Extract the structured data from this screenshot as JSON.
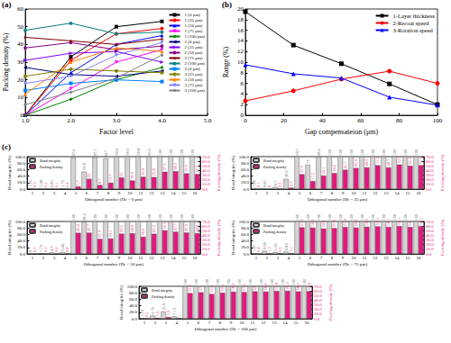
{
  "chart_data": [
    {
      "type": "line",
      "title": "(a)",
      "x_label": "Factor level",
      "y_label": "Packing density (%)",
      "x": [
        1,
        2,
        3,
        4
      ],
      "xlim": [
        1,
        5
      ],
      "xticks": [
        {
          "value": 1,
          "label": "1.0"
        },
        {
          "value": 2,
          "label": "2.0"
        },
        {
          "value": 3,
          "label": "3.0"
        },
        {
          "value": 4,
          "label": "4.0"
        },
        {
          "value": 5,
          "label": "5.0"
        }
      ],
      "ylim": [
        0,
        60
      ],
      "yticks": [
        0,
        10,
        20,
        30,
        40,
        50,
        60
      ],
      "grid": false,
      "legend": "upper right",
      "series": [
        {
          "name": "1 (0 μm)",
          "color": "#000000",
          "marker": "square",
          "values": [
            0,
            33,
            50,
            53
          ]
        },
        {
          "name": "1 (25 μm)",
          "color": "#ff0000",
          "marker": "circle",
          "values": [
            0,
            31,
            46,
            49
          ]
        },
        {
          "name": "1 (50 μm)",
          "color": "#0000ff",
          "marker": "triangle",
          "values": [
            0,
            24,
            40,
            45
          ]
        },
        {
          "name": "1 (75 μm)",
          "color": "#ff00ff",
          "marker": "triangle_down",
          "values": [
            0,
            15,
            30,
            37
          ]
        },
        {
          "name": "1 (100 μm)",
          "color": "#008000",
          "marker": "diamond",
          "values": [
            0,
            9,
            20,
            27
          ]
        },
        {
          "name": "2 (0 μm)",
          "color": "#000080",
          "marker": "triangle_left",
          "values": [
            27,
            23,
            22,
            25
          ]
        },
        {
          "name": "2 (25 μm)",
          "color": "#8000ff",
          "marker": "triangle_right",
          "values": [
            31,
            35,
            36,
            30
          ]
        },
        {
          "name": "2 (50 μm)",
          "color": "#800080",
          "marker": "hexagon",
          "values": [
            38,
            41,
            37,
            39
          ]
        },
        {
          "name": "2 (75 μm)",
          "color": "#800000",
          "marker": "star",
          "values": [
            44,
            42,
            40,
            43
          ]
        },
        {
          "name": "2 (100 μm)",
          "color": "#008080",
          "marker": "pentagon",
          "values": [
            48,
            52,
            46,
            47
          ]
        },
        {
          "name": "3 (0 μm)",
          "color": "#0080ff",
          "marker": "square",
          "values": [
            14,
            18,
            20,
            19
          ]
        },
        {
          "name": "3 (25 μm)",
          "color": "#808000",
          "marker": "circle",
          "values": [
            22,
            26,
            25,
            24
          ]
        },
        {
          "name": "3 (50 μm)",
          "color": "#ff8000",
          "marker": "triangle",
          "values": [
            12,
            30,
            38,
            36
          ]
        },
        {
          "name": "3 (75 μm)",
          "color": "#8080ff",
          "marker": "triangle_down",
          "values": [
            18,
            22,
            34,
            41
          ]
        },
        {
          "name": "3 (100 μm)",
          "color": "#808080",
          "marker": "diamond",
          "values": [
            6,
            13,
            21,
            34
          ]
        }
      ]
    },
    {
      "type": "line",
      "title": "(b)",
      "x_label": "Gap compensateion (μm)",
      "y_label": "Range (%)",
      "x": [
        0,
        25,
        50,
        75,
        100
      ],
      "xlim": [
        0,
        100
      ],
      "xticks": [
        0,
        20,
        40,
        60,
        80,
        100
      ],
      "ylim": [
        0,
        20
      ],
      "yticks": [
        0,
        2,
        4,
        6,
        8,
        10,
        12,
        14,
        16,
        18,
        20
      ],
      "grid": false,
      "legend": "upper right",
      "series": [
        {
          "name": "1-Layer thickness",
          "color": "#000000",
          "marker": "square",
          "values": [
            19.5,
            13.2,
            9.7,
            5.9,
            2.0
          ]
        },
        {
          "name": "2-Recoat speed",
          "color": "#ff0000",
          "marker": "circle",
          "values": [
            2.7,
            4.6,
            6.8,
            8.3,
            6.0
          ]
        },
        {
          "name": "3-Rotation speed",
          "color": "#0000ff",
          "marker": "triangle",
          "values": [
            9.5,
            7.8,
            7.0,
            3.4,
            1.9
          ]
        }
      ]
    },
    {
      "type": "bar",
      "title": "(c)",
      "x_label": "Othogonal number (Hc = 0 μm)",
      "y_label": "Bond integrity (%)",
      "y2_label": "Packing density (%)",
      "categories": [
        "1",
        "2",
        "3",
        "4",
        "5",
        "6",
        "7",
        "8",
        "9",
        "10",
        "11",
        "12",
        "13",
        "14",
        "15",
        "16"
      ],
      "ylim": [
        0,
        100
      ],
      "yticks": [
        {
          "value": 0,
          "label": "0.0"
        },
        {
          "value": 20,
          "label": "20.0"
        },
        {
          "value": 40,
          "label": "40.0"
        },
        {
          "value": 60,
          "label": "60.0"
        },
        {
          "value": 80,
          "label": "80.0"
        },
        {
          "value": 100,
          "label": "100.0"
        }
      ],
      "y2lim": [
        0,
        70
      ],
      "y2ticks": [
        {
          "value": 0,
          "label": "0.0"
        },
        {
          "value": 10,
          "label": "10.0"
        },
        {
          "value": 20,
          "label": "20.0"
        },
        {
          "value": 30,
          "label": "30.0"
        },
        {
          "value": 40,
          "label": "40.0"
        },
        {
          "value": 50,
          "label": "50.0"
        },
        {
          "value": 60,
          "label": "60.0"
        },
        {
          "value": 70,
          "label": "70.0"
        }
      ],
      "grid": false,
      "legend": "upper left",
      "data_labels": true,
      "series": [
        {
          "name": "Bond integrity",
          "color": "#d4d4d4",
          "values": [
            1.95,
            2.98,
            0.89,
            1.75,
            97.6,
            53.8,
            97.7,
            94.7,
            99.9,
            99.9,
            99.8,
            99.5,
            100,
            100,
            100,
            100
          ]
        },
        {
          "name": "Packing density",
          "color": "#e5177e",
          "axis": "y2",
          "values": [
            0.3,
            0.2,
            0.1,
            0.4,
            5.7,
            22.0,
            8.7,
            13.7,
            25.0,
            18.4,
            26.4,
            25.8,
            37.3,
            38.5,
            33.9,
            32.3
          ]
        }
      ]
    },
    {
      "type": "bar",
      "x_label": "Othogonal number (Hc = 25 μm)",
      "y_label": "Bond integrity (%)",
      "y2_label": "Packing density (%)",
      "categories": [
        "1",
        "2",
        "3",
        "4",
        "5",
        "6",
        "7",
        "8",
        "9",
        "10",
        "11",
        "12",
        "13",
        "14",
        "15",
        "16"
      ],
      "ylim": [
        0,
        100
      ],
      "yticks": [
        {
          "value": 0,
          "label": "0.0"
        },
        {
          "value": 20,
          "label": "20.0"
        },
        {
          "value": 40,
          "label": "40.0"
        },
        {
          "value": 60,
          "label": "60.0"
        },
        {
          "value": 80,
          "label": "80.0"
        },
        {
          "value": 100,
          "label": "100.0"
        }
      ],
      "y2lim": [
        0,
        70
      ],
      "y2ticks": [
        {
          "value": 0,
          "label": "0.0"
        },
        {
          "value": 10,
          "label": "10.0"
        },
        {
          "value": 20,
          "label": "20.0"
        },
        {
          "value": 30,
          "label": "30.0"
        },
        {
          "value": 40,
          "label": "40.0"
        },
        {
          "value": 50,
          "label": "50.0"
        },
        {
          "value": 60,
          "label": "60.0"
        },
        {
          "value": 70,
          "label": "70.0"
        }
      ],
      "grid": false,
      "legend": "upper left",
      "data_labels": true,
      "series": [
        {
          "name": "Bond integrity",
          "color": "#d4d4d4",
          "values": [
            1.86,
            0.06,
            6.7,
            30.9,
            99.7,
            75,
            98.6,
            100,
            100,
            100,
            100,
            100,
            100,
            100,
            100,
            100
          ]
        },
        {
          "name": "Packing density",
          "color": "#e5177e",
          "axis": "y2",
          "values": [
            0.1,
            0,
            0.3,
            2.9,
            31.9,
            17.2,
            29.1,
            34.4,
            41.7,
            45.4,
            46.9,
            51.4,
            46.7,
            52.9,
            50.2,
            51.5
          ]
        }
      ]
    },
    {
      "type": "bar",
      "x_label": "Othogonal number (Hc = 50 μm)",
      "y_label": "Bond integrity (%)",
      "y2_label": "Packing density (%)",
      "categories": [
        "1",
        "2",
        "3",
        "4",
        "5",
        "6",
        "7",
        "8",
        "9",
        "10",
        "11",
        "12",
        "13",
        "14",
        "15",
        "16"
      ],
      "ylim": [
        0,
        100
      ],
      "yticks": [
        {
          "value": 0,
          "label": "0.0"
        },
        {
          "value": 20,
          "label": "20.0"
        },
        {
          "value": 40,
          "label": "40.0"
        },
        {
          "value": 60,
          "label": "60.0"
        },
        {
          "value": 80,
          "label": "80.0"
        },
        {
          "value": 100,
          "label": "100.0"
        }
      ],
      "y2lim": [
        0,
        70
      ],
      "y2ticks": [
        {
          "value": 0,
          "label": "0.0"
        },
        {
          "value": 10,
          "label": "10.0"
        },
        {
          "value": 20,
          "label": "20.0"
        },
        {
          "value": 30,
          "label": "30.0"
        },
        {
          "value": 40,
          "label": "40.0"
        },
        {
          "value": 50,
          "label": "50.0"
        },
        {
          "value": 60,
          "label": "60.0"
        },
        {
          "value": 70,
          "label": "70.0"
        }
      ],
      "grid": false,
      "legend": "upper left",
      "data_labels": true,
      "series": [
        {
          "name": "Bond integrity",
          "color": "#d4d4d4",
          "values": [
            0,
            1.79,
            4.5,
            5.46,
            100,
            98.4,
            100,
            100,
            100,
            100,
            100,
            100,
            100,
            100,
            100,
            100
          ]
        },
        {
          "name": "Packing density",
          "color": "#e5177e",
          "axis": "y2",
          "values": [
            0.2,
            0.3,
            0.6,
            0.8,
            45.4,
            45.7,
            32.3,
            33.1,
            43.6,
            44.6,
            36.9,
            43.4,
            50.9,
            47.7,
            45.9,
            44.6
          ]
        }
      ]
    },
    {
      "type": "bar",
      "x_label": "Othogonal number (Hc = 75 μm)",
      "y_label": "Bond integrity (%)",
      "y2_label": "Packing density (%)",
      "categories": [
        "1",
        "2",
        "3",
        "4",
        "5",
        "6",
        "7",
        "8",
        "9",
        "10",
        "11",
        "12",
        "13",
        "14",
        "15",
        "16"
      ],
      "ylim": [
        0,
        100
      ],
      "yticks": [
        {
          "value": 0,
          "label": "0.0"
        },
        {
          "value": 20,
          "label": "20.0"
        },
        {
          "value": 40,
          "label": "40.0"
        },
        {
          "value": 60,
          "label": "60.0"
        },
        {
          "value": 80,
          "label": "80.0"
        },
        {
          "value": 100,
          "label": "100.0"
        }
      ],
      "y2lim": [
        0,
        70
      ],
      "y2ticks": [
        {
          "value": 0,
          "label": "0.0"
        },
        {
          "value": 10,
          "label": "10.0"
        },
        {
          "value": 20,
          "label": "20.0"
        },
        {
          "value": 30,
          "label": "30.0"
        },
        {
          "value": 40,
          "label": "40.0"
        },
        {
          "value": 50,
          "label": "50.0"
        },
        {
          "value": 60,
          "label": "60.0"
        },
        {
          "value": 70,
          "label": "70.0"
        }
      ],
      "grid": false,
      "legend": "upper left",
      "data_labels": true,
      "series": [
        {
          "name": "Bond integrity",
          "color": "#d4d4d4",
          "values": [
            1.47,
            9.38,
            5.56,
            6.82,
            100,
            100,
            100,
            100,
            100,
            100,
            100,
            100,
            100,
            100,
            100,
            100
          ]
        },
        {
          "name": "Packing density",
          "color": "#e5177e",
          "axis": "y2",
          "values": [
            0.4,
            1.2,
            0.9,
            1.1,
            57.3,
            56.6,
            54.8,
            55.6,
            57.9,
            56.8,
            58.5,
            59.3,
            58.1,
            60.1,
            58.0,
            60.1
          ]
        }
      ]
    },
    {
      "type": "bar",
      "x_label": "Othogonal number (Hc = 100 μm)",
      "y_label": "Bond integrity (%)",
      "y2_label": "Packing density (%)",
      "categories": [
        "1",
        "2",
        "3",
        "4",
        "5",
        "6",
        "7",
        "8",
        "9",
        "10",
        "11",
        "12",
        "13",
        "14",
        "15",
        "16"
      ],
      "ylim": [
        0,
        100
      ],
      "yticks": [
        {
          "value": 0,
          "label": "0.0"
        },
        {
          "value": 20,
          "label": "20.0"
        },
        {
          "value": 40,
          "label": "40.0"
        },
        {
          "value": 60,
          "label": "60.0"
        },
        {
          "value": 80,
          "label": "80.0"
        },
        {
          "value": 100,
          "label": "100.0"
        }
      ],
      "y2lim": [
        0,
        70
      ],
      "y2ticks": [
        {
          "value": 0,
          "label": "0.0"
        },
        {
          "value": 10,
          "label": "10.0"
        },
        {
          "value": 20,
          "label": "20.0"
        },
        {
          "value": 30,
          "label": "30.0"
        },
        {
          "value": 40,
          "label": "40.0"
        },
        {
          "value": 50,
          "label": "50.0"
        },
        {
          "value": 60,
          "label": "60.0"
        },
        {
          "value": 70,
          "label": "70.0"
        }
      ],
      "grid": false,
      "legend": "upper left",
      "data_labels": true,
      "series": [
        {
          "name": "Bond integrity",
          "color": "#d4d4d4",
          "values": [
            1.93,
            9.79,
            21.9,
            7.13,
            100,
            100,
            100,
            100,
            100,
            100,
            100,
            100,
            100,
            100,
            100,
            100
          ]
        },
        {
          "name": "Packing density",
          "color": "#e5177e",
          "axis": "y2",
          "values": [
            0.5,
            1.4,
            3.6,
            1.0,
            55.2,
            57.0,
            53.4,
            56.1,
            58.3,
            57.5,
            59.0,
            58.6,
            59.8,
            60.3,
            58.9,
            59.4
          ]
        }
      ]
    }
  ]
}
